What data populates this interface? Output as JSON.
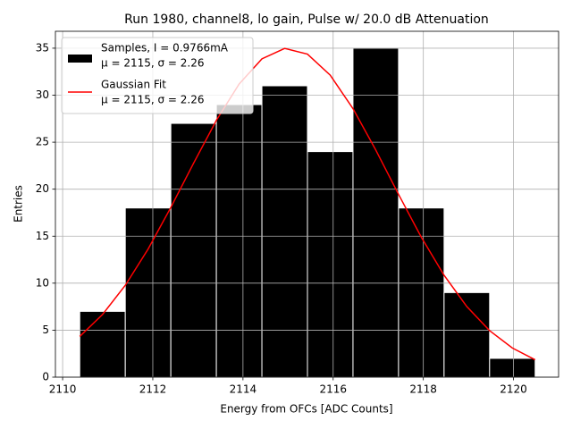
{
  "chart_data": {
    "type": "histogram",
    "title": "Run 1980, channel8, lo gain, Pulse w/ 20.0 dB Attenuation",
    "xlabel": "Energy from OFCs [ADC Counts]",
    "ylabel": "Entries",
    "histogram": {
      "name": [
        "Samples, I = 0.9766mA",
        "μ = 2115, σ = 2.26"
      ],
      "color": "#000000",
      "bins": [
        2110.38,
        2111.39,
        2112.4,
        2113.41,
        2114.42,
        2115.43,
        2116.44,
        2117.45,
        2118.46,
        2119.47,
        2120.48
      ],
      "counts": [
        7,
        18,
        27,
        29,
        31,
        24,
        35,
        18,
        9,
        2
      ]
    },
    "fit": {
      "name": [
        "Gaussian Fit",
        "μ = 2115, σ = 2.26"
      ],
      "color": "#ff0000",
      "x": [
        2110.38,
        2110.885,
        2111.39,
        2111.895,
        2112.4,
        2112.905,
        2113.41,
        2113.915,
        2114.42,
        2114.925,
        2115.43,
        2115.935,
        2116.44,
        2116.945,
        2117.45,
        2117.955,
        2118.46,
        2118.965,
        2119.47,
        2119.975,
        2120.48
      ],
      "values": [
        4.33,
        6.67,
        9.77,
        13.62,
        18.06,
        22.77,
        27.33,
        31.19,
        33.87,
        34.98,
        34.37,
        32.13,
        28.57,
        24.17,
        19.45,
        14.89,
        10.84,
        7.51,
        4.95,
        3.1,
        1.85
      ]
    },
    "xlim": [
      2109.84,
      2121.0
    ],
    "ylim": [
      0,
      36.8
    ],
    "xticks": [
      2110,
      2112,
      2114,
      2116,
      2118,
      2120
    ],
    "yticks": [
      0,
      5,
      10,
      15,
      20,
      25,
      30,
      35
    ],
    "grid": true,
    "legend": "upper left"
  }
}
